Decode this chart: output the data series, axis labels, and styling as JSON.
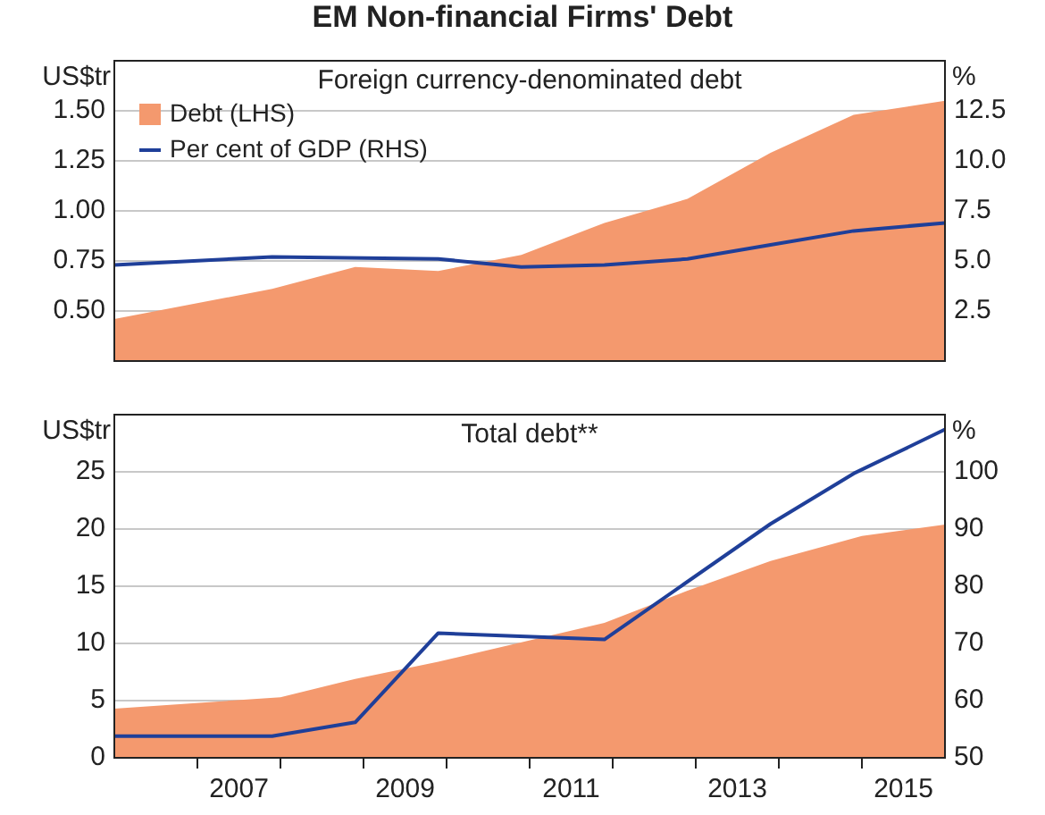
{
  "chart_data": [
    {
      "type": "area",
      "title": "EM Non-financial Firms' Debt",
      "subtitle": "Foreign currency-denominated debt",
      "ylabel": "US$tr",
      "y2label": "%",
      "xlim": [
        2006,
        2016
      ],
      "ylim": [
        0.25,
        1.75
      ],
      "yticks": [
        {
          "value": 0.5,
          "label": "0.50"
        },
        {
          "value": 0.75,
          "label": "0.75"
        },
        {
          "value": 1,
          "label": "1.00"
        },
        {
          "value": 1.25,
          "label": "1.25"
        },
        {
          "value": 1.5,
          "label": "1.50"
        }
      ],
      "y2lim": [
        0,
        15
      ],
      "y2ticks": [
        {
          "value": 2.5,
          "label": "2.5"
        },
        {
          "value": 5,
          "label": "5.0"
        },
        {
          "value": 7.5,
          "label": "7.5"
        },
        {
          "value": 10,
          "label": "10.0"
        },
        {
          "value": 12.5,
          "label": "12.5"
        }
      ],
      "grid": "y",
      "legend": "top left",
      "tick_labels": "y",
      "series": [
        {
          "name": "Debt (LHS)",
          "color": "#f4996e",
          "x": [
            2006,
            2007.9,
            2008.9,
            2009.9,
            2010.9,
            2011.9,
            2012.9,
            2013.9,
            2014.9,
            2016
          ],
          "values": [
            0.46,
            0.61,
            0.72,
            0.7,
            0.78,
            0.94,
            1.06,
            1.29,
            1.48,
            1.55
          ]
        },
        {
          "name": "Per cent of GDP (RHS)",
          "type": "line",
          "axis": "y2",
          "color": "#1f3f99",
          "x": [
            2006,
            2007.9,
            2009.9,
            2010.9,
            2011.9,
            2012.9,
            2013.9,
            2014.9,
            2016
          ],
          "values": [
            4.8,
            5.2,
            5.1,
            4.7,
            4.8,
            5.1,
            5.8,
            6.5,
            6.9
          ]
        }
      ]
    },
    {
      "type": "area",
      "subtitle": "Total debt**",
      "ylabel": "US$tr",
      "y2label": "%",
      "xlim": [
        2006,
        2016
      ],
      "xticks": [
        {
          "value": 2007,
          "label": null
        },
        {
          "value": 2007.5,
          "label": "2007"
        },
        {
          "value": 2008,
          "label": null
        },
        {
          "value": 2009,
          "label": null
        },
        {
          "value": 2009.5,
          "label": "2009"
        },
        {
          "value": 2010,
          "label": null
        },
        {
          "value": 2011,
          "label": null
        },
        {
          "value": 2011.5,
          "label": "2011"
        },
        {
          "value": 2012,
          "label": null
        },
        {
          "value": 2013,
          "label": null
        },
        {
          "value": 2013.5,
          "label": "2013"
        },
        {
          "value": 2014,
          "label": null
        },
        {
          "value": 2015,
          "label": null
        },
        {
          "value": 2015.5,
          "label": "2015"
        }
      ],
      "ylim": [
        0,
        30
      ],
      "yticks": [
        0,
        5,
        10,
        15,
        20,
        25
      ],
      "y2lim": [
        50,
        110
      ],
      "y2ticks": [
        50,
        60,
        70,
        80,
        90,
        100
      ],
      "grid": "y",
      "series": [
        {
          "color": "#f4996e",
          "x": [
            2006,
            2008,
            2008.9,
            2009.9,
            2011.9,
            2012.9,
            2013.9,
            2015,
            2016
          ],
          "values": [
            4.3,
            5.3,
            6.9,
            8.4,
            11.8,
            14.6,
            17.2,
            19.4,
            20.4
          ]
        },
        {
          "type": "line",
          "axis": "y2",
          "color": "#1f3f99",
          "x": [
            2006,
            2007.9,
            2008.9,
            2009.9,
            2011.9,
            2013.9,
            2014.9,
            2016
          ],
          "values": [
            53.8,
            53.8,
            56.2,
            71.8,
            70.7,
            90.9,
            99.7,
            107.4
          ]
        }
      ]
    }
  ]
}
